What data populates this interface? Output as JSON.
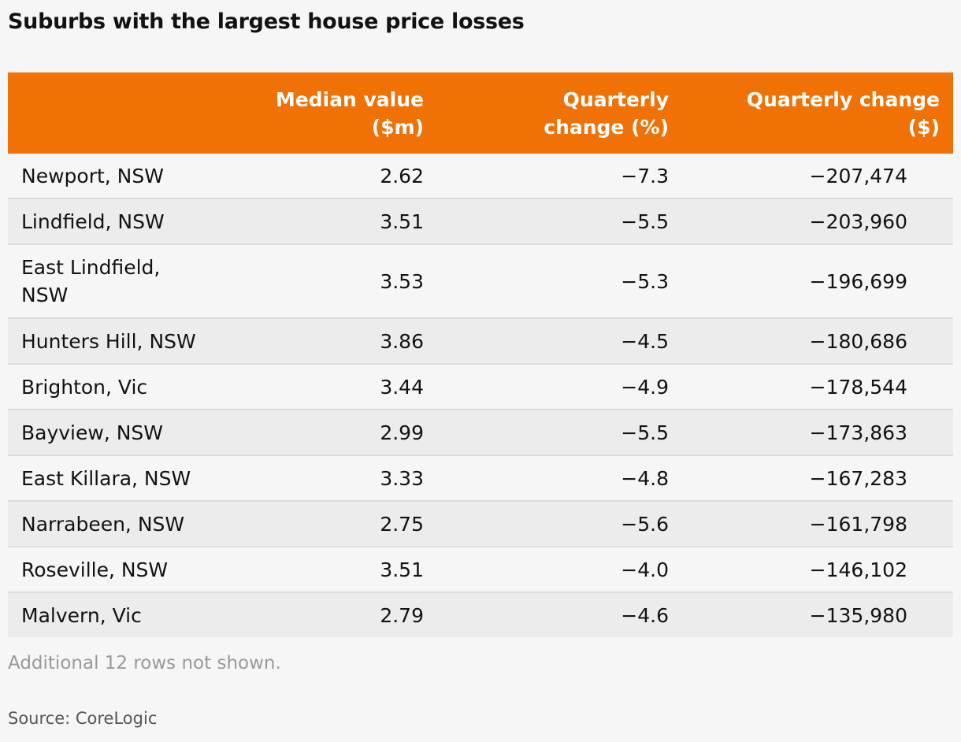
{
  "title": "Suburbs with the largest house price losses",
  "header": {
    "col0": "",
    "col1": [
      "Median value",
      "($m)"
    ],
    "col2": [
      "Quarterly",
      "change (%)"
    ],
    "col3": [
      "Quarterly change",
      "($)"
    ]
  },
  "colors": {
    "header_bg": "#f07106",
    "header_text": "#ffffff",
    "row_alt_bg": "#ececec",
    "page_bg": "#f6f6f6"
  },
  "chart_data": {
    "type": "table",
    "title": "Suburbs with the largest house price losses",
    "columns": [
      "",
      "Median value ($m)",
      "Quarterly change (%)",
      "Quarterly change ($)"
    ],
    "rows": [
      {
        "suburb": "Newport, NSW",
        "median": "2.62",
        "pct": "−7.3",
        "dollars": "−207,474"
      },
      {
        "suburb": "Lindfield, NSW",
        "median": "3.51",
        "pct": "−5.5",
        "dollars": "−203,960"
      },
      {
        "suburb": "East Lindfield, NSW",
        "median": "3.53",
        "pct": "−5.3",
        "dollars": "−196,699"
      },
      {
        "suburb": "Hunters Hill, NSW",
        "median": "3.86",
        "pct": "−4.5",
        "dollars": "−180,686"
      },
      {
        "suburb": "Brighton, Vic",
        "median": "3.44",
        "pct": "−4.9",
        "dollars": "−178,544"
      },
      {
        "suburb": "Bayview, NSW",
        "median": "2.99",
        "pct": "−5.5",
        "dollars": "−173,863"
      },
      {
        "suburb": "East Killara, NSW",
        "median": "3.33",
        "pct": "−4.8",
        "dollars": "−167,283"
      },
      {
        "suburb": "Narrabeen, NSW",
        "median": "2.75",
        "pct": "−5.6",
        "dollars": "−161,798"
      },
      {
        "suburb": "Roseville, NSW",
        "median": "3.51",
        "pct": "−4.0",
        "dollars": "−146,102"
      },
      {
        "suburb": "Malvern, Vic",
        "median": "2.79",
        "pct": "−4.6",
        "dollars": "−135,980"
      }
    ]
  },
  "footer": {
    "note": "Additional 12 rows not shown.",
    "source": "Source: CoreLogic"
  }
}
